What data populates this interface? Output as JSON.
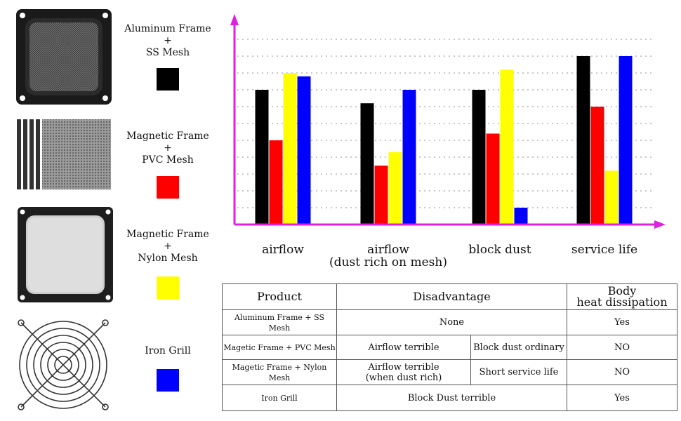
{
  "legend": [
    {
      "label": "Aluminum Frame\n+\nSS Mesh",
      "color": "#000000",
      "image": "aluminum-frame-filter"
    },
    {
      "label": "Magnetic Frame\n+\nPVC Mesh",
      "color": "#ff0000",
      "image": "magnetic-strips-pvc-mesh"
    },
    {
      "label": "Magnetic Frame\n+\nNylon Mesh",
      "color": "#ffff00",
      "image": "magnetic-frame-nylon-filter"
    },
    {
      "label": "Iron Grill",
      "color": "#0000ff",
      "image": "iron-wire-grill"
    }
  ],
  "chart_data": {
    "type": "bar",
    "categories": [
      "airflow",
      "airflow\n(dust rich on mesh)",
      "block dust",
      "service life"
    ],
    "series": [
      {
        "color": "#000000",
        "values": [
          8,
          7.2,
          8,
          10
        ]
      },
      {
        "color": "#ff0000",
        "values": [
          5,
          3.5,
          5.4,
          7
        ]
      },
      {
        "color": "#ffff00",
        "values": [
          9,
          4.3,
          9.2,
          3.2
        ]
      },
      {
        "color": "#0000ff",
        "values": [
          8.8,
          8,
          1,
          10
        ]
      }
    ],
    "ylim": [
      0,
      11
    ],
    "grid": true,
    "axis_color": "#e020e0",
    "title": "",
    "xlabel": "",
    "ylabel": ""
  },
  "table": {
    "headers": [
      "Product",
      "Disadvantage",
      "Body\nheat dissipation"
    ],
    "rows": [
      {
        "product": "Aluminum Frame + SS Mesh",
        "disadvantages": [
          "None"
        ],
        "heat": "Yes"
      },
      {
        "product": "Magetic Frame + PVC Mesh",
        "disadvantages": [
          "Airflow terrible",
          "Block dust ordinary"
        ],
        "heat": "NO"
      },
      {
        "product": "Magetic Frame + Nylon Mesh",
        "disadvantages": [
          "Airflow terrible\n(when dust rich)",
          "Short service life"
        ],
        "heat": "NO"
      },
      {
        "product": "Iron Grill",
        "disadvantages": [
          "Block Dust terrible"
        ],
        "heat": "Yes"
      }
    ]
  }
}
